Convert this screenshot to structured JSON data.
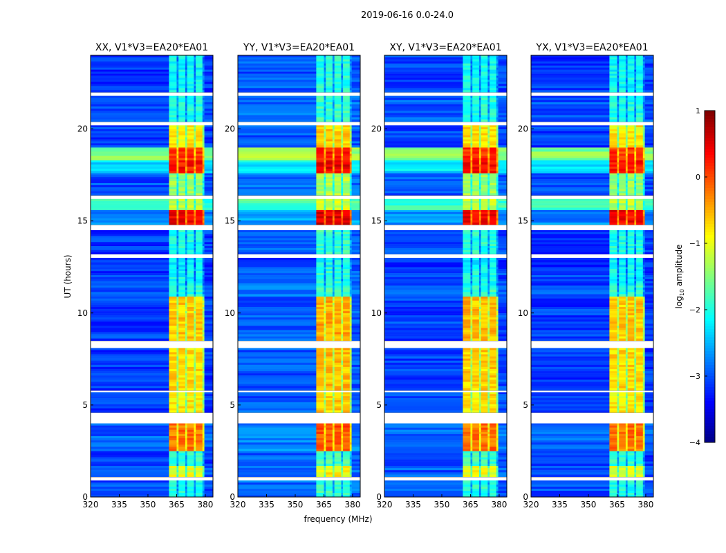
{
  "chart_data": {
    "type": "heatmap",
    "suptitle": "2019-06-16 0.0-24.0",
    "xlabel": "frequency (MHz)",
    "ylabel": "UT (hours)",
    "xlim": [
      320,
      384
    ],
    "ylim": [
      0,
      24
    ],
    "xticks": [
      "320",
      "335",
      "350",
      "365",
      "380"
    ],
    "xtick_values": [
      320,
      335,
      350,
      365,
      380
    ],
    "yticks": [
      "0",
      "5",
      "10",
      "15",
      "20"
    ],
    "ytick_values": [
      0,
      5,
      10,
      15,
      20
    ],
    "colorbar": {
      "label": "log10 amplitude",
      "label_main": "log",
      "label_sub": "10",
      "label_rest": " amplitude",
      "range": [
        -4,
        1
      ],
      "ticks": [
        "1",
        "0",
        "−1",
        "−2",
        "−3",
        "−4"
      ],
      "tick_values": [
        1,
        0,
        -1,
        -2,
        -3,
        -4
      ],
      "colormap": "jet"
    },
    "panels": [
      {
        "title": "XX, V1*V3=EA20*EA01",
        "offset": 0
      },
      {
        "title": "YY, V1*V3=EA20*EA01",
        "offset": 0.15
      },
      {
        "title": "XY, V1*V3=EA20*EA01",
        "offset": 0.05
      },
      {
        "title": "YX, V1*V3=EA20*EA01",
        "offset": 0
      }
    ],
    "freq_columns": [
      {
        "f0": 320,
        "f1": 361,
        "kind": "bg"
      },
      {
        "f0": 361,
        "f1": 365,
        "kind": "rfi"
      },
      {
        "f0": 365,
        "f1": 366,
        "kind": "gap"
      },
      {
        "f0": 366,
        "f1": 369.5,
        "kind": "rfi"
      },
      {
        "f0": 369.5,
        "f1": 370.5,
        "kind": "gap"
      },
      {
        "f0": 370.5,
        "f1": 374,
        "kind": "rfi"
      },
      {
        "f0": 374,
        "f1": 375,
        "kind": "gap"
      },
      {
        "f0": 375,
        "f1": 378.5,
        "kind": "rfi"
      },
      {
        "f0": 378.5,
        "f1": 379.5,
        "kind": "gap"
      },
      {
        "f0": 379.5,
        "f1": 384,
        "kind": "bg"
      }
    ],
    "time_rows": [
      {
        "t0": 0.0,
        "t1": 0.9,
        "bg": -3.0,
        "rfi": -2.0
      },
      {
        "t0": 0.9,
        "t1": 1.1,
        "flagged": true
      },
      {
        "t0": 1.1,
        "t1": 1.7,
        "bg": -3.0,
        "rfi": -1.0
      },
      {
        "t0": 1.7,
        "t1": 2.5,
        "bg": -3.1,
        "rfi": -1.9
      },
      {
        "t0": 2.5,
        "t1": 4.0,
        "bg": -2.9,
        "rfi": -0.2
      },
      {
        "t0": 4.0,
        "t1": 4.6,
        "flagged": true
      },
      {
        "t0": 4.6,
        "t1": 5.7,
        "bg": -3.1,
        "rfi": -0.8
      },
      {
        "t0": 5.7,
        "t1": 5.8,
        "flagged": true
      },
      {
        "t0": 5.8,
        "t1": 8.1,
        "bg": -3.1,
        "rfi": -0.7
      },
      {
        "t0": 8.1,
        "t1": 8.5,
        "flagged": true
      },
      {
        "t0": 8.5,
        "t1": 10.9,
        "bg": -3.1,
        "rfi": -0.6
      },
      {
        "t0": 10.9,
        "t1": 11.5,
        "bg": -3.0,
        "rfi": -1.9
      },
      {
        "t0": 11.5,
        "t1": 12.5,
        "bg": -3.1,
        "rfi": -2.1
      },
      {
        "t0": 12.5,
        "t1": 13.0,
        "bg": -3.2,
        "rfi": -2.2
      },
      {
        "t0": 13.0,
        "t1": 13.2,
        "flagged": true
      },
      {
        "t0": 13.2,
        "t1": 14.5,
        "bg": -3.1,
        "rfi": -2.0
      },
      {
        "t0": 14.5,
        "t1": 14.8,
        "flagged": true
      },
      {
        "t0": 14.8,
        "t1": 15.6,
        "bg": -2.7,
        "rfi": 0.4
      },
      {
        "t0": 15.6,
        "t1": 16.2,
        "bg": -1.9,
        "rfi": -1.2
      },
      {
        "t0": 16.2,
        "t1": 16.4,
        "flagged": true
      },
      {
        "t0": 16.4,
        "t1": 17.6,
        "bg": -3.0,
        "rfi": -1.4
      },
      {
        "t0": 17.6,
        "t1": 18.3,
        "bg": -2.3,
        "rfi": 0.3
      },
      {
        "t0": 18.3,
        "t1": 19.0,
        "bg": -1.5,
        "rfi": 0.1
      },
      {
        "t0": 19.0,
        "t1": 20.2,
        "bg": -3.1,
        "rfi": -0.8
      },
      {
        "t0": 20.2,
        "t1": 20.4,
        "flagged": true
      },
      {
        "t0": 20.4,
        "t1": 21.8,
        "bg": -3.0,
        "rfi": -2.0
      },
      {
        "t0": 21.8,
        "t1": 22.0,
        "flagged": true
      },
      {
        "t0": 22.0,
        "t1": 24.0,
        "bg": -3.1,
        "rfi": -2.1
      }
    ]
  }
}
